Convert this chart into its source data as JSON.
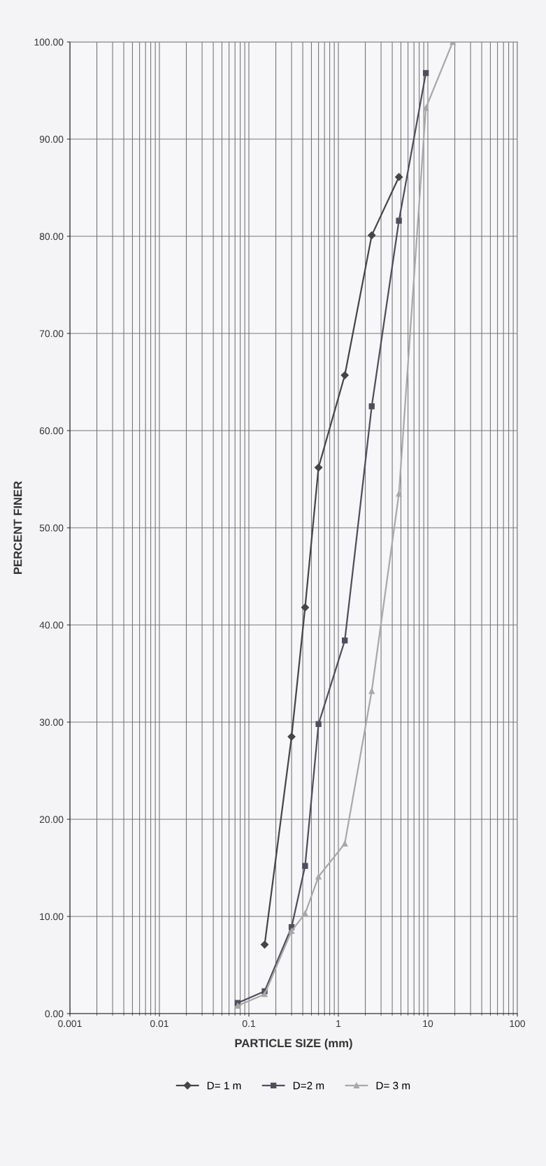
{
  "chart_data": {
    "type": "line",
    "xlabel": "PARTICLE SIZE (mm)",
    "ylabel": "PERCENT FINER",
    "x": [
      0.075,
      0.15,
      0.3,
      0.425,
      0.6,
      1.18,
      2.36,
      4.75,
      9.5,
      19
    ],
    "series": [
      {
        "name": "D= 1 m",
        "color": "#454545",
        "marker": "diamond",
        "values": [
          null,
          7.1,
          28.5,
          41.8,
          56.2,
          65.7,
          80.1,
          86.1,
          null,
          null
        ]
      },
      {
        "name": "D=2 m",
        "color": "#4e4e5c",
        "marker": "square",
        "values": [
          1.1,
          2.3,
          8.9,
          15.2,
          29.8,
          38.4,
          62.5,
          81.6,
          96.8,
          null
        ]
      },
      {
        "name": "D= 3 m",
        "color": "#a8a8a8",
        "marker": "triangle",
        "values": [
          0.8,
          2.0,
          8.5,
          10.3,
          14.1,
          17.5,
          33.2,
          53.5,
          93.2,
          100
        ]
      }
    ],
    "log": "x",
    "xlim": [
      0.001,
      100
    ],
    "xticks": [
      0.001,
      0.01,
      0.1,
      1,
      10,
      100
    ],
    "ylim": [
      0,
      100
    ],
    "yticks": [
      {
        "value": 0,
        "label": "0.00"
      },
      {
        "value": 10,
        "label": "10.00"
      },
      {
        "value": 20,
        "label": "20.00"
      },
      {
        "value": 30,
        "label": "30.00"
      },
      {
        "value": 40,
        "label": "40.00"
      },
      {
        "value": 50,
        "label": "50.00"
      },
      {
        "value": 60,
        "label": "60.00"
      },
      {
        "value": 70,
        "label": "70.00"
      },
      {
        "value": 80,
        "label": "80.00"
      },
      {
        "value": 90,
        "label": "90.00"
      },
      {
        "value": 100,
        "label": "100.00"
      }
    ],
    "grid": true,
    "legend": "bottom",
    "line_style": "solid"
  }
}
